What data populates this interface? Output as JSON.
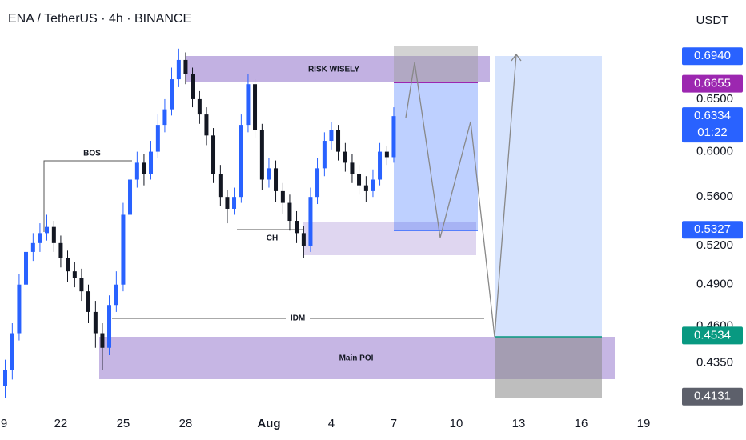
{
  "chart_data": {
    "type": "candlestick",
    "title": "ENA / TetherUS · 4h · BINANCE",
    "currency": "USDT",
    "x": [
      19.33,
      19.67,
      20,
      20.33,
      20.67,
      21,
      21.33,
      21.67,
      22,
      22.33,
      22.67,
      23,
      23.33,
      23.67,
      24,
      24.33,
      24.67,
      25,
      25.33,
      25.67,
      26,
      26.33,
      26.67,
      27,
      27.33,
      27.67,
      28,
      28.33,
      28.67,
      29,
      29.33,
      29.67,
      30,
      30.33,
      30.67,
      31,
      31.33,
      31.67,
      32,
      32.33,
      32.67,
      33,
      33.33,
      33.67,
      34,
      34.33,
      34.67,
      35,
      35.33,
      35.67,
      36,
      36.33,
      36.67,
      37,
      37.33,
      37.67,
      38
    ],
    "open": [
      0.42,
      0.43,
      0.455,
      0.49,
      0.515,
      0.522,
      0.53,
      0.535,
      0.522,
      0.51,
      0.5,
      0.495,
      0.485,
      0.47,
      0.455,
      0.445,
      0.475,
      0.49,
      0.545,
      0.575,
      0.59,
      0.58,
      0.6,
      0.625,
      0.64,
      0.67,
      0.69,
      0.675,
      0.65,
      0.635,
      0.615,
      0.58,
      0.56,
      0.55,
      0.56,
      0.625,
      0.665,
      0.62,
      0.575,
      0.585,
      0.565,
      0.555,
      0.54,
      0.53,
      0.52,
      0.56,
      0.585,
      0.61,
      0.62,
      0.6,
      0.59,
      0.58,
      0.57,
      0.565,
      0.575,
      0.6,
      0.595
    ],
    "high": [
      0.437,
      0.462,
      0.498,
      0.522,
      0.53,
      0.538,
      0.545,
      0.54,
      0.528,
      0.516,
      0.507,
      0.502,
      0.49,
      0.478,
      0.462,
      0.482,
      0.5,
      0.555,
      0.585,
      0.6,
      0.598,
      0.61,
      0.635,
      0.65,
      0.682,
      0.702,
      0.698,
      0.682,
      0.658,
      0.642,
      0.622,
      0.588,
      0.566,
      0.568,
      0.635,
      0.675,
      0.67,
      0.626,
      0.594,
      0.592,
      0.572,
      0.562,
      0.548,
      0.536,
      0.568,
      0.594,
      0.618,
      0.628,
      0.625,
      0.608,
      0.598,
      0.588,
      0.578,
      0.584,
      0.608,
      0.605,
      0.642
    ],
    "low": [
      0.412,
      0.424,
      0.45,
      0.484,
      0.508,
      0.515,
      0.524,
      0.515,
      0.503,
      0.492,
      0.488,
      0.478,
      0.462,
      0.445,
      0.43,
      0.44,
      0.47,
      0.485,
      0.538,
      0.568,
      0.57,
      0.575,
      0.594,
      0.618,
      0.634,
      0.662,
      0.665,
      0.642,
      0.626,
      0.606,
      0.572,
      0.552,
      0.538,
      0.545,
      0.555,
      0.618,
      0.612,
      0.566,
      0.568,
      0.556,
      0.546,
      0.532,
      0.522,
      0.51,
      0.515,
      0.554,
      0.578,
      0.602,
      0.592,
      0.582,
      0.572,
      0.562,
      0.556,
      0.56,
      0.57,
      0.588,
      0.59
    ],
    "close": [
      0.43,
      0.455,
      0.49,
      0.515,
      0.522,
      0.53,
      0.535,
      0.522,
      0.51,
      0.5,
      0.495,
      0.485,
      0.47,
      0.455,
      0.445,
      0.475,
      0.49,
      0.545,
      0.575,
      0.59,
      0.58,
      0.6,
      0.625,
      0.64,
      0.67,
      0.69,
      0.675,
      0.65,
      0.635,
      0.615,
      0.58,
      0.56,
      0.55,
      0.56,
      0.625,
      0.665,
      0.62,
      0.575,
      0.585,
      0.565,
      0.555,
      0.54,
      0.53,
      0.52,
      0.56,
      0.585,
      0.61,
      0.62,
      0.6,
      0.59,
      0.58,
      0.57,
      0.565,
      0.575,
      0.6,
      0.595,
      0.6334
    ],
    "up_color": "#2962ff",
    "down_color": "#131722",
    "xlim": [
      19.08,
      51.77
    ],
    "xticks": [
      {
        "value": 19,
        "label": "9"
      },
      22,
      25,
      28,
      {
        "value": 32,
        "label": "Aug"
      },
      {
        "value": 35,
        "label": "4"
      },
      {
        "value": 38,
        "label": "7"
      },
      {
        "value": 41,
        "label": "10"
      },
      {
        "value": 44,
        "label": "13"
      },
      {
        "value": 47,
        "label": "16"
      },
      {
        "value": 50,
        "label": "19"
      }
    ],
    "ylim": [
      0.406,
      0.756
    ],
    "log_scale": true,
    "grid": false,
    "yticks": [
      {
        "value": 0.65,
        "label": "0.6500"
      },
      {
        "value": 0.6,
        "label": "0.6000"
      },
      {
        "value": 0.56,
        "label": "0.5600"
      },
      {
        "value": 0.52,
        "label": "0.5200"
      },
      {
        "value": 0.49,
        "label": "0.4900"
      },
      {
        "value": 0.46,
        "label": "0.4600"
      },
      {
        "value": 0.435,
        "label": "0.4350"
      }
    ],
    "price_labels": [
      {
        "value": 0.694,
        "label": "0.6940",
        "color": "#2962ff"
      },
      {
        "value": 0.6655,
        "label": "0.6655",
        "color": "#9c27b0"
      },
      {
        "value": 0.6334,
        "label": "0.6334",
        "color": "#2962ff",
        "countdown": "01:22"
      },
      {
        "value": 0.5327,
        "label": "0.5327",
        "color": "#2962ff"
      },
      {
        "value": 0.4534,
        "label": "0.4534",
        "color": "#089981"
      },
      {
        "value": 0.4131,
        "label": "0.4131",
        "color": "#5d606b"
      }
    ],
    "annotations": {
      "risk": "RISK WISELY",
      "bos": "BOS",
      "ch": "CH",
      "idm": "IDM",
      "poi": "Main POI"
    }
  }
}
